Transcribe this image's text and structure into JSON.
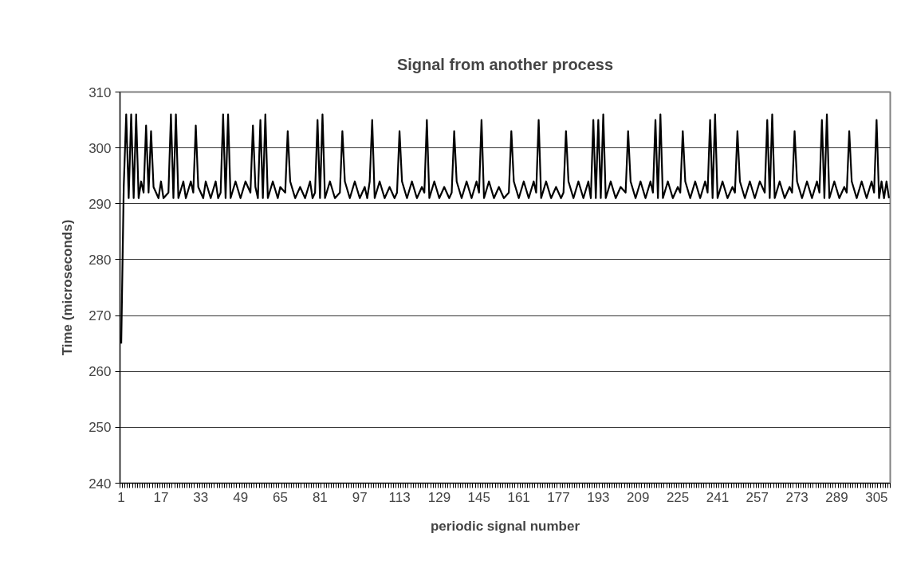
{
  "chart_data": {
    "type": "line",
    "title": "Signal from another process",
    "xlabel": "periodic signal number",
    "ylabel": "Time (microseconds)",
    "xlim": [
      0.5,
      310.5
    ],
    "xticks": [
      1,
      17,
      33,
      49,
      65,
      81,
      97,
      113,
      129,
      145,
      161,
      177,
      193,
      209,
      225,
      241,
      257,
      273,
      289,
      305
    ],
    "ylim": [
      240,
      310
    ],
    "yticks": [
      240,
      250,
      260,
      270,
      280,
      290,
      300,
      310
    ],
    "grid": "y",
    "marker": "none",
    "line_style": "solid",
    "series": [
      {
        "color": "#000000",
        "x": [
          1,
          2,
          3,
          4,
          5,
          6,
          7,
          8,
          9,
          10,
          11,
          12,
          13,
          14,
          16,
          17,
          18,
          20,
          21,
          22,
          23,
          24,
          26,
          27,
          29,
          30,
          31,
          32,
          34,
          35,
          37,
          39,
          40,
          41,
          42,
          43,
          44,
          45,
          47,
          49,
          51,
          53,
          54,
          55,
          56,
          57,
          58,
          59,
          60,
          62,
          64,
          65,
          67,
          68,
          69,
          71,
          73,
          75,
          77,
          78,
          79,
          80,
          81,
          82,
          83,
          85,
          87,
          89,
          90,
          91,
          93,
          95,
          97,
          99,
          100,
          101,
          102,
          103,
          105,
          107,
          109,
          111,
          112,
          113,
          114,
          116,
          118,
          120,
          122,
          123,
          124,
          125,
          127,
          129,
          131,
          133,
          134,
          135,
          136,
          138,
          140,
          142,
          144,
          145,
          146,
          147,
          149,
          151,
          153,
          155,
          157,
          158,
          159,
          161,
          163,
          165,
          167,
          168,
          169,
          170,
          172,
          174,
          176,
          178,
          179,
          180,
          181,
          183,
          185,
          187,
          189,
          190,
          191,
          192,
          193,
          194,
          195,
          196,
          198,
          200,
          202,
          204,
          205,
          206,
          208,
          210,
          212,
          214,
          215,
          216,
          217,
          218,
          219,
          221,
          223,
          225,
          226,
          227,
          228,
          230,
          232,
          234,
          236,
          237,
          238,
          239,
          240,
          241,
          243,
          245,
          247,
          248,
          249,
          250,
          252,
          254,
          256,
          258,
          260,
          261,
          262,
          263,
          264,
          266,
          268,
          270,
          271,
          272,
          273,
          275,
          277,
          279,
          281,
          282,
          283,
          284,
          285,
          286,
          288,
          290,
          292,
          293,
          294,
          295,
          297,
          299,
          301,
          303,
          304,
          305,
          306,
          307,
          308,
          309,
          310
        ],
        "values": [
          265,
          293,
          306,
          291,
          306,
          291,
          306,
          291,
          294,
          292,
          304,
          292,
          303,
          293,
          291,
          294,
          291,
          292,
          306,
          291,
          306,
          291,
          294,
          291,
          294,
          292,
          304,
          293,
          291,
          294,
          291,
          294,
          291,
          292,
          306,
          291,
          306,
          291,
          294,
          291,
          294,
          292,
          304,
          293,
          291,
          305,
          291,
          306,
          291,
          294,
          291,
          293,
          292,
          303,
          294,
          291,
          293,
          291,
          294,
          291,
          292,
          305,
          291,
          306,
          291,
          294,
          291,
          292,
          303,
          294,
          291,
          294,
          291,
          293,
          291,
          294,
          305,
          291,
          294,
          291,
          293,
          291,
          292,
          303,
          294,
          291,
          294,
          291,
          293,
          292,
          305,
          291,
          294,
          291,
          293,
          291,
          292,
          303,
          294,
          291,
          294,
          291,
          294,
          292,
          305,
          291,
          294,
          291,
          293,
          291,
          292,
          303,
          294,
          291,
          294,
          291,
          294,
          292,
          305,
          291,
          294,
          291,
          293,
          291,
          292,
          303,
          294,
          291,
          294,
          291,
          294,
          291,
          305,
          291,
          305,
          291,
          306,
          291,
          294,
          291,
          293,
          292,
          303,
          294,
          291,
          294,
          291,
          294,
          292,
          305,
          291,
          306,
          291,
          294,
          291,
          293,
          292,
          303,
          294,
          291,
          294,
          291,
          294,
          292,
          305,
          291,
          306,
          291,
          294,
          291,
          293,
          292,
          303,
          294,
          291,
          294,
          291,
          294,
          292,
          305,
          291,
          306,
          291,
          294,
          291,
          293,
          292,
          303,
          294,
          291,
          294,
          291,
          294,
          292,
          305,
          291,
          306,
          291,
          294,
          291,
          293,
          292,
          303,
          294,
          291,
          294,
          291,
          294,
          292,
          305,
          291,
          294,
          291,
          294,
          291
        ]
      }
    ]
  }
}
